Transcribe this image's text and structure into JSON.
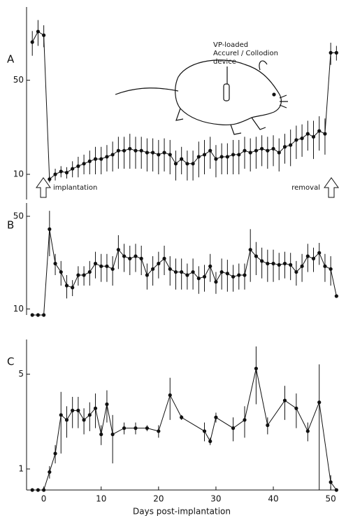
{
  "chart_data": [
    {
      "type": "line",
      "label": "A",
      "color": "#111",
      "log": true,
      "ylim": [
        6.5,
        175
      ],
      "yticks": [
        10,
        50
      ],
      "x": [
        -2,
        -1,
        0,
        1,
        2,
        3,
        4,
        5,
        6,
        7,
        8,
        9,
        10,
        11,
        12,
        13,
        14,
        15,
        16,
        17,
        18,
        19,
        20,
        21,
        22,
        23,
        24,
        25,
        26,
        27,
        28,
        29,
        30,
        31,
        32,
        33,
        34,
        35,
        36,
        37,
        38,
        39,
        40,
        41,
        42,
        43,
        44,
        45,
        46,
        47,
        48,
        49,
        50,
        51
      ],
      "values": [
        96,
        115,
        108,
        9.2,
        10,
        10.5,
        10.3,
        11,
        11.5,
        12,
        12.5,
        13,
        13,
        13.5,
        14,
        15,
        15,
        15.5,
        15,
        15,
        14.5,
        14.5,
        14,
        14.5,
        14,
        12,
        13,
        12,
        12,
        13.5,
        14,
        15,
        13,
        13.5,
        13.5,
        14,
        14,
        15,
        14.5,
        15,
        15.5,
        15,
        15.5,
        14.5,
        16,
        16.5,
        18,
        18.5,
        20,
        19,
        21,
        20,
        80,
        80
      ],
      "errors": [
        20,
        25,
        20,
        0.5,
        1,
        1,
        1,
        1.5,
        2,
        2,
        2.5,
        3,
        3,
        3,
        3.5,
        4,
        4,
        4.5,
        4,
        4,
        4,
        4,
        4,
        4,
        4,
        3,
        3,
        3,
        3,
        4,
        4,
        4,
        3.5,
        3.5,
        3.5,
        4,
        4,
        4,
        4,
        4,
        4,
        4,
        4,
        4,
        4,
        5,
        5,
        5,
        5,
        6,
        6,
        6,
        15,
        10
      ],
      "annotations": [
        "VP-loaded",
        "Accurel / Collodion",
        "device",
        "implantation",
        "removal"
      ]
    },
    {
      "type": "line",
      "label": "B",
      "color": "#111",
      "log": true,
      "ylim": [
        9,
        63
      ],
      "yticks": [
        10,
        50
      ],
      "x": [
        -2,
        -1,
        0,
        1,
        2,
        3,
        4,
        5,
        6,
        7,
        8,
        9,
        10,
        11,
        12,
        13,
        14,
        15,
        16,
        17,
        18,
        19,
        20,
        21,
        22,
        23,
        24,
        25,
        26,
        27,
        28,
        29,
        30,
        31,
        32,
        33,
        34,
        35,
        36,
        37,
        38,
        39,
        40,
        41,
        42,
        43,
        44,
        45,
        46,
        47,
        48,
        49,
        50,
        51
      ],
      "values": [
        9,
        9,
        9,
        40,
        22,
        19,
        15,
        14.5,
        18,
        18,
        19,
        22,
        21,
        21,
        20,
        28,
        25,
        24,
        25,
        24,
        18,
        20,
        22,
        24,
        20,
        19,
        19,
        18,
        19,
        17,
        17.5,
        21,
        16,
        19,
        18.5,
        17.5,
        18,
        18,
        28,
        25,
        23,
        22,
        22,
        21.5,
        22,
        21.5,
        19,
        21,
        25,
        24,
        26.5,
        21,
        20,
        12.5
      ],
      "errors": [
        0,
        0,
        0,
        15,
        4,
        4,
        3,
        2,
        3,
        3,
        4,
        5,
        5,
        5,
        5,
        8,
        6,
        6,
        6,
        6,
        4,
        5,
        5,
        6,
        5,
        5,
        5,
        4,
        5,
        4,
        4,
        5,
        3,
        5,
        5,
        4,
        4,
        4,
        12,
        7,
        6,
        6,
        6,
        5,
        5,
        5,
        4,
        5,
        6,
        5,
        5,
        5,
        5,
        0
      ]
    },
    {
      "type": "line",
      "label": "C",
      "color": "#111",
      "log": true,
      "ylim": [
        0.7,
        9
      ],
      "yticks": [
        1,
        5
      ],
      "x": [
        -2,
        -1,
        0,
        1,
        2,
        3,
        4,
        5,
        6,
        7,
        8,
        9,
        10,
        11,
        12,
        14,
        16,
        18,
        20,
        22,
        24,
        28,
        29,
        30,
        33,
        35,
        37,
        39,
        42,
        44,
        46,
        48,
        50,
        51
      ],
      "values": [
        0.7,
        0.7,
        0.7,
        0.95,
        1.3,
        2.5,
        2.3,
        2.7,
        2.7,
        2.3,
        2.5,
        2.8,
        1.8,
        3.0,
        1.8,
        2.0,
        2.0,
        2.0,
        1.9,
        3.5,
        2.4,
        1.9,
        1.6,
        2.4,
        2.0,
        2.3,
        5.5,
        2.1,
        3.2,
        2.8,
        1.9,
        3.1,
        0.8,
        0.7
      ],
      "errors": [
        0,
        0,
        0,
        0.1,
        0.2,
        1.2,
        0.6,
        0.7,
        0.7,
        0.5,
        0.6,
        0.8,
        0.3,
        0.8,
        0.7,
        0.2,
        0.2,
        0.1,
        0.2,
        1.2,
        0.1,
        0.3,
        0.1,
        0.2,
        0.4,
        0.6,
        2.5,
        0.3,
        0.9,
        0.8,
        0.3,
        2.8,
        0.1,
        0
      ],
      "xlim": [
        -3,
        51.2
      ],
      "xticks": [
        0,
        10,
        20,
        30,
        40,
        50
      ],
      "xlabel": "Days post-implantation"
    }
  ]
}
